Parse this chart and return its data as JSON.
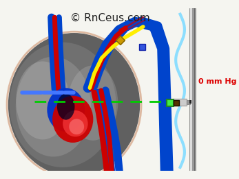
{
  "title": "© RnCeus.com",
  "title_color": "#222222",
  "title_fontsize": 11,
  "bg_color": "#f5f5f0",
  "label_0mmhg": "0 mm Hg",
  "label_color": "#dd0000",
  "figsize": [
    3.47,
    2.61
  ],
  "dpi": 100
}
